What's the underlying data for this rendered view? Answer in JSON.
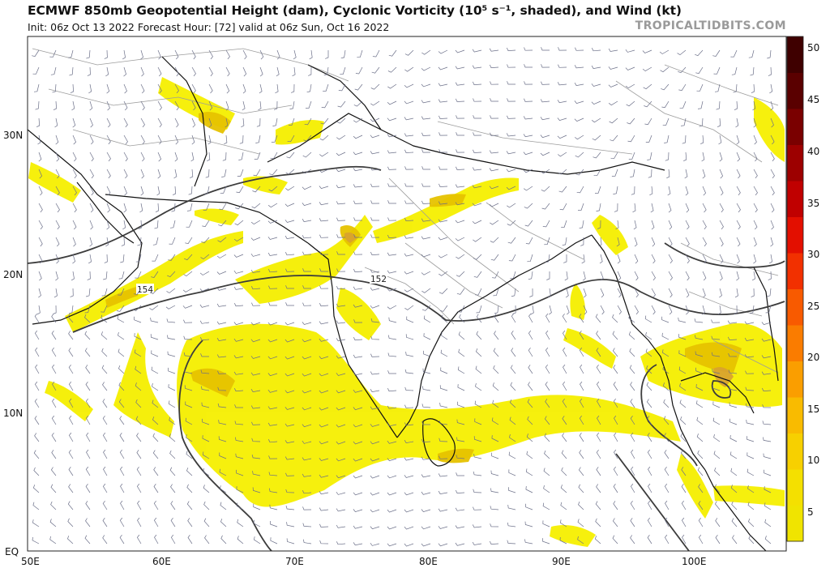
{
  "header": {
    "title": "ECMWF 850mb Geopotential Height (dam), Cyclonic Vorticity (10⁵ s⁻¹, shaded), and Wind (kt)",
    "subtitle": "Init: 06z Oct 13 2022   Forecast Hour: [72]   valid at 06z Sun, Oct 16 2022",
    "brand": "TROPICALTIDBITS.COM"
  },
  "map": {
    "lon_range": [
      50,
      107
    ],
    "lat_range": [
      0,
      38
    ],
    "lon_ticks": [
      "50E",
      "60E",
      "70E",
      "80E",
      "90E",
      "100E"
    ],
    "lat_ticks": [
      "EQ",
      "10N",
      "20N",
      "30N"
    ],
    "height_contour_labels": [
      "154",
      "152"
    ],
    "colors": {
      "shading_light": "#f5ef00",
      "shading_mid": "#e9c400",
      "shading_dark": "#d8a030",
      "coast": "#111111",
      "borders": "#9a9a9a",
      "contour": "#3a3a3a"
    }
  },
  "colorbar": {
    "ticks": [
      "5",
      "10",
      "15",
      "20",
      "25",
      "30",
      "35",
      "40",
      "45",
      "50"
    ],
    "colors": [
      "#f0e400",
      "#f4e000",
      "#f7d000",
      "#f9bb00",
      "#fa9e00",
      "#fa7c00",
      "#f85a00",
      "#f23000",
      "#e30f00",
      "#c00000",
      "#9d0000",
      "#7a0000",
      "#5a0000",
      "#3f0000"
    ]
  }
}
